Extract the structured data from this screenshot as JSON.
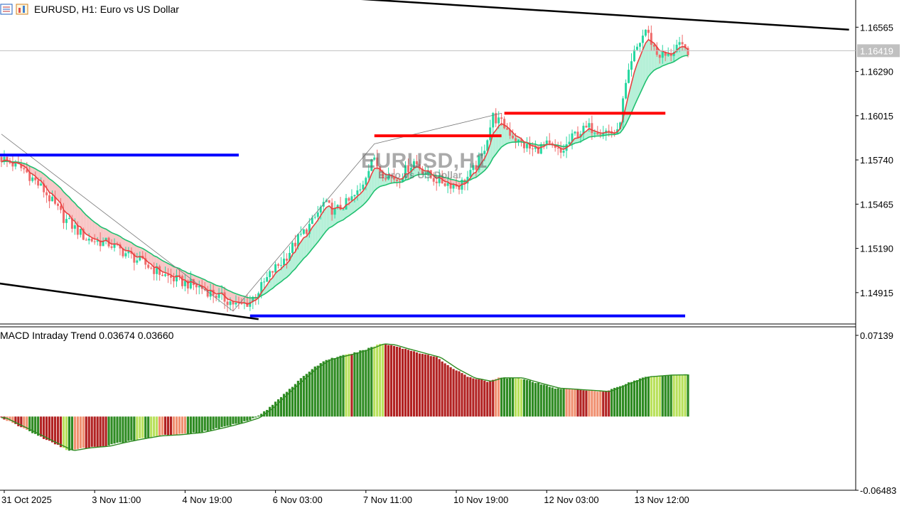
{
  "header": {
    "symbol": "EURUSD, H1:",
    "description": "Euro vs US Dollar"
  },
  "watermark": {
    "symbol": "EURUSD,H1",
    "description": "Euro vs US Dollar"
  },
  "indicator": {
    "name": "MACD Intraday Trend",
    "value1": "0.03674",
    "value2": "0.03660"
  },
  "colors": {
    "bull_candle": "#26d7a0",
    "bear_candle": "#ef6b6b",
    "fast_ma": "#e84040",
    "slow_ma": "#20c070",
    "bull_cloud": "#b6f0d8",
    "bear_cloud": "#f8c6c6",
    "support_line": "#0000ff",
    "resistance_line": "#ff0000",
    "trend_line": "#000000",
    "macd_dark_green": "#2e8b22",
    "macd_light_green": "#b8e05a",
    "macd_dark_red": "#b22222",
    "macd_light_red": "#f09070"
  },
  "chart_data": [
    {
      "type": "candlestick",
      "symbol": "EURUSD",
      "timeframe": "H1",
      "y_ticks": [
        "1.16565",
        "1.16290",
        "1.16015",
        "1.15740",
        "1.15465",
        "1.15190",
        "1.14915"
      ],
      "ylim": [
        1.1472,
        1.1669
      ],
      "current_price": "1.16419",
      "x_ticks": [
        "31 Oct 2025",
        "3 Nov 11:00",
        "4 Nov 19:00",
        "6 Nov 03:00",
        "7 Nov 11:00",
        "10 Nov 19:00",
        "12 Nov 03:00",
        "13 Nov 12:00"
      ],
      "x_tick_times": [
        1,
        33,
        65,
        97,
        129,
        161,
        193,
        225
      ],
      "time_range": [
        0,
        243
      ],
      "path": [
        [
          0,
          1.1575
        ],
        [
          8,
          1.1568
        ],
        [
          15,
          1.1555
        ],
        [
          22,
          1.1538
        ],
        [
          30,
          1.1525
        ],
        [
          38,
          1.1522
        ],
        [
          45,
          1.1515
        ],
        [
          52,
          1.1508
        ],
        [
          58,
          1.1502
        ],
        [
          64,
          1.1498
        ],
        [
          70,
          1.1495
        ],
        [
          76,
          1.149
        ],
        [
          82,
          1.1485
        ],
        [
          84,
          1.1483
        ],
        [
          88,
          1.1486
        ],
        [
          92,
          1.1495
        ],
        [
          96,
          1.1505
        ],
        [
          100,
          1.1512
        ],
        [
          105,
          1.1525
        ],
        [
          110,
          1.1535
        ],
        [
          114,
          1.1547
        ],
        [
          118,
          1.1542
        ],
        [
          123,
          1.1548
        ],
        [
          127,
          1.1555
        ],
        [
          131,
          1.1575
        ],
        [
          135,
          1.1566
        ],
        [
          140,
          1.1562
        ],
        [
          146,
          1.1573
        ],
        [
          152,
          1.1563
        ],
        [
          157,
          1.156
        ],
        [
          162,
          1.1558
        ],
        [
          166,
          1.1565
        ],
        [
          170,
          1.1576
        ],
        [
          174,
          1.1601
        ],
        [
          178,
          1.1595
        ],
        [
          183,
          1.1585
        ],
        [
          188,
          1.158
        ],
        [
          193,
          1.1583
        ],
        [
          198,
          1.1578
        ],
        [
          203,
          1.159
        ],
        [
          208,
          1.1594
        ],
        [
          214,
          1.1592
        ],
        [
          218,
          1.159
        ],
        [
          221,
          1.162
        ],
        [
          224,
          1.164
        ],
        [
          228,
          1.1655
        ],
        [
          232,
          1.164
        ],
        [
          236,
          1.1638
        ],
        [
          239,
          1.1645
        ],
        [
          242,
          1.1642
        ]
      ],
      "support_lines": [
        {
          "price": 1.1577,
          "from": -4,
          "to": 84
        },
        {
          "price": 1.1477,
          "from": 88,
          "to": 242
        }
      ],
      "resistance_lines": [
        {
          "price": 1.1589,
          "from": 132,
          "to": 177
        },
        {
          "price": 1.1603,
          "from": 178,
          "to": 235
        }
      ],
      "trend_lines": [
        {
          "t1": -4,
          "p1": 1.1498,
          "t2": 91,
          "p2": 1.1475
        },
        {
          "t1": 127,
          "p1": 1.1674,
          "t2": 300,
          "p2": 1.1655
        }
      ],
      "zigzag": [
        [
          0,
          1.159
        ],
        [
          82,
          1.148
        ],
        [
          132,
          1.1584
        ],
        [
          177,
          1.1603
        ]
      ]
    },
    {
      "type": "bar",
      "name": "MACD Intraday Trend",
      "y_ticks": [
        "0.07139",
        "-0.06483"
      ],
      "ylim": [
        -0.0648,
        0.0714
      ],
      "values_path": [
        [
          0,
          -0.001
        ],
        [
          10,
          -0.013
        ],
        [
          18,
          -0.023
        ],
        [
          24,
          -0.03
        ],
        [
          30,
          -0.0275
        ],
        [
          37,
          -0.026
        ],
        [
          42,
          -0.023
        ],
        [
          48,
          -0.02
        ],
        [
          55,
          -0.017
        ],
        [
          62,
          -0.016
        ],
        [
          70,
          -0.014
        ],
        [
          78,
          -0.0095
        ],
        [
          85,
          -0.005
        ],
        [
          90,
          -0.001
        ],
        [
          95,
          0.008
        ],
        [
          100,
          0.02
        ],
        [
          105,
          0.031
        ],
        [
          110,
          0.042
        ],
        [
          115,
          0.05
        ],
        [
          120,
          0.053
        ],
        [
          125,
          0.056
        ],
        [
          130,
          0.06
        ],
        [
          134,
          0.064
        ],
        [
          138,
          0.063
        ],
        [
          142,
          0.06
        ],
        [
          148,
          0.056
        ],
        [
          154,
          0.052
        ],
        [
          160,
          0.042
        ],
        [
          166,
          0.034
        ],
        [
          172,
          0.031
        ],
        [
          176,
          0.034
        ],
        [
          183,
          0.034
        ],
        [
          190,
          0.029
        ],
        [
          196,
          0.025
        ],
        [
          202,
          0.024
        ],
        [
          208,
          0.023
        ],
        [
          214,
          0.022
        ],
        [
          220,
          0.028
        ],
        [
          228,
          0.035
        ],
        [
          236,
          0.0365
        ],
        [
          242,
          0.0367
        ]
      ],
      "color_segments": [
        [
          0,
          2,
          "dark_red"
        ],
        [
          2,
          5,
          "light_red"
        ],
        [
          5,
          8,
          "dark_red"
        ],
        [
          8,
          10,
          "light_red"
        ],
        [
          10,
          14,
          "dark_green"
        ],
        [
          14,
          22,
          "dark_red"
        ],
        [
          22,
          24,
          "light_green"
        ],
        [
          24,
          26,
          "dark_green"
        ],
        [
          26,
          30,
          "light_red"
        ],
        [
          30,
          38,
          "dark_red"
        ],
        [
          38,
          48,
          "dark_green"
        ],
        [
          48,
          51,
          "light_green"
        ],
        [
          51,
          53,
          "dark_green"
        ],
        [
          53,
          56,
          "light_green"
        ],
        [
          56,
          58,
          "light_red"
        ],
        [
          58,
          61,
          "dark_red"
        ],
        [
          61,
          66,
          "light_red"
        ],
        [
          66,
          90,
          "dark_green"
        ],
        [
          90,
          122,
          "dark_green"
        ],
        [
          122,
          124,
          "light_green"
        ],
        [
          124,
          125,
          "dark_red"
        ],
        [
          125,
          132,
          "dark_green"
        ],
        [
          132,
          136,
          "light_green"
        ],
        [
          136,
          175,
          "dark_red"
        ],
        [
          175,
          177,
          "light_red"
        ],
        [
          177,
          182,
          "dark_green"
        ],
        [
          182,
          185,
          "light_green"
        ],
        [
          185,
          200,
          "dark_green"
        ],
        [
          200,
          204,
          "light_red"
        ],
        [
          204,
          208,
          "dark_red"
        ],
        [
          208,
          213,
          "light_red"
        ],
        [
          213,
          216,
          "dark_red"
        ],
        [
          216,
          230,
          "dark_green"
        ],
        [
          230,
          234,
          "light_green"
        ],
        [
          234,
          238,
          "dark_green"
        ],
        [
          238,
          243,
          "light_green"
        ]
      ]
    }
  ]
}
